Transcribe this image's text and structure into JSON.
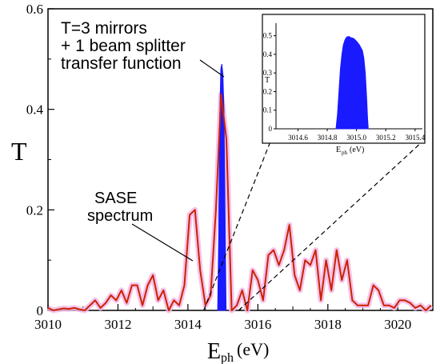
{
  "chart_data": [
    {
      "type": "line",
      "xlabel_main": "E",
      "xlabel_sub": "ph",
      "xlabel_unit": "(eV)",
      "ylabel": "T",
      "xlim": [
        3010,
        3021
      ],
      "ylim": [
        0,
        0.6
      ],
      "xticks": [
        3010,
        3012,
        3014,
        3016,
        3018,
        3020
      ],
      "yticks": [
        0,
        0.2,
        0.4,
        0.6
      ],
      "ytick_labels": [
        "0",
        "0.2",
        "0.4",
        "0.6"
      ],
      "grid": false,
      "annotations": [
        {
          "lines": [
            "T=3 mirrors",
            "+ 1 beam splitter",
            "transfer function"
          ],
          "target": "transfer-function"
        },
        {
          "lines": [
            "SASE",
            "spectrum"
          ],
          "target": "sase-spectrum"
        }
      ],
      "series": [
        {
          "id": "sase-spectrum",
          "style": "line",
          "color": "#cc2200",
          "halo_color": "#f2b8e8",
          "x": [
            3010,
            3010.15,
            3010.3,
            3010.45,
            3010.6,
            3010.75,
            3010.9,
            3011.05,
            3011.2,
            3011.35,
            3011.5,
            3011.65,
            3011.8,
            3011.95,
            3012.1,
            3012.25,
            3012.4,
            3012.55,
            3012.7,
            3012.85,
            3013,
            3013.15,
            3013.3,
            3013.45,
            3013.6,
            3013.75,
            3013.9,
            3014.05,
            3014.2,
            3014.35,
            3014.5,
            3014.65,
            3014.8,
            3014.95,
            3015.1,
            3015.25,
            3015.4,
            3015.55,
            3015.7,
            3015.85,
            3016,
            3016.15,
            3016.3,
            3016.45,
            3016.6,
            3016.75,
            3016.9,
            3017.05,
            3017.2,
            3017.35,
            3017.5,
            3017.65,
            3017.8,
            3017.95,
            3018.1,
            3018.25,
            3018.4,
            3018.55,
            3018.7,
            3018.85,
            3019,
            3019.15,
            3019.3,
            3019.45,
            3019.6,
            3019.75,
            3019.9,
            3020.05,
            3020.2,
            3020.35,
            3020.5,
            3020.65,
            3020.8,
            3020.95
          ],
          "y": [
            0.005,
            0.0,
            0.002,
            0.004,
            0.003,
            0.005,
            0.002,
            0.0,
            0.01,
            0.02,
            0.005,
            0.015,
            0.03,
            0.02,
            0.04,
            0.015,
            0.05,
            0.05,
            0.01,
            0.05,
            0.07,
            0.02,
            0.04,
            0.0,
            0.02,
            0.01,
            0.05,
            0.19,
            0.2,
            0.08,
            0.01,
            0.03,
            0.2,
            0.43,
            0.34,
            0.0,
            0.01,
            0.04,
            0.0,
            0.08,
            0.06,
            0.02,
            0.11,
            0.12,
            0.09,
            0.12,
            0.17,
            0.07,
            0.04,
            0.1,
            0.09,
            0.12,
            0.02,
            0.1,
            0.04,
            0.12,
            0.06,
            0.1,
            0.02,
            0.01,
            0.01,
            0.01,
            0.05,
            0.04,
            0.01,
            0.01,
            0.005,
            0.02,
            0.02,
            0.015,
            0.005,
            0.01,
            0.0,
            0.01
          ]
        },
        {
          "id": "transfer-function",
          "style": "filled",
          "color": "#1a1aff",
          "x": [
            3014.85,
            3014.88,
            3014.91,
            3014.94,
            3014.97,
            3015.0,
            3015.03,
            3015.06,
            3015.09
          ],
          "y": [
            0.0,
            0.15,
            0.38,
            0.48,
            0.49,
            0.47,
            0.4,
            0.2,
            0.0
          ]
        }
      ]
    },
    {
      "type": "area",
      "inset": true,
      "xlabel_main": "E",
      "xlabel_sub": "ph",
      "xlabel_unit": "(eV)",
      "ylabel": "T",
      "xlim": [
        3014.45,
        3015.45
      ],
      "ylim": [
        0,
        0.55
      ],
      "xticks": [
        3014.6,
        3014.8,
        3015.0,
        3015.2,
        3015.4
      ],
      "xtick_labels": [
        "3014.6",
        "3014.8",
        "3015.0",
        "3015.2",
        "3015.4"
      ],
      "yticks": [
        0,
        0.1,
        0.2,
        0.3,
        0.4,
        0.5
      ],
      "ytick_labels": [
        "0",
        "0.1",
        "0.2",
        "0.3",
        "0.4",
        "0.5"
      ],
      "series": [
        {
          "id": "inset-transfer-function",
          "color": "#1a1aff",
          "x": [
            3014.86,
            3014.87,
            3014.88,
            3014.89,
            3014.9,
            3014.91,
            3014.92,
            3014.93,
            3014.94,
            3014.95,
            3014.96,
            3014.98,
            3015.0,
            3015.02,
            3015.04,
            3015.05,
            3015.06,
            3015.07,
            3015.075,
            3015.08
          ],
          "y": [
            0.0,
            0.08,
            0.2,
            0.32,
            0.4,
            0.45,
            0.475,
            0.49,
            0.495,
            0.495,
            0.49,
            0.485,
            0.47,
            0.45,
            0.42,
            0.38,
            0.3,
            0.15,
            0.06,
            0.0
          ]
        }
      ]
    }
  ]
}
